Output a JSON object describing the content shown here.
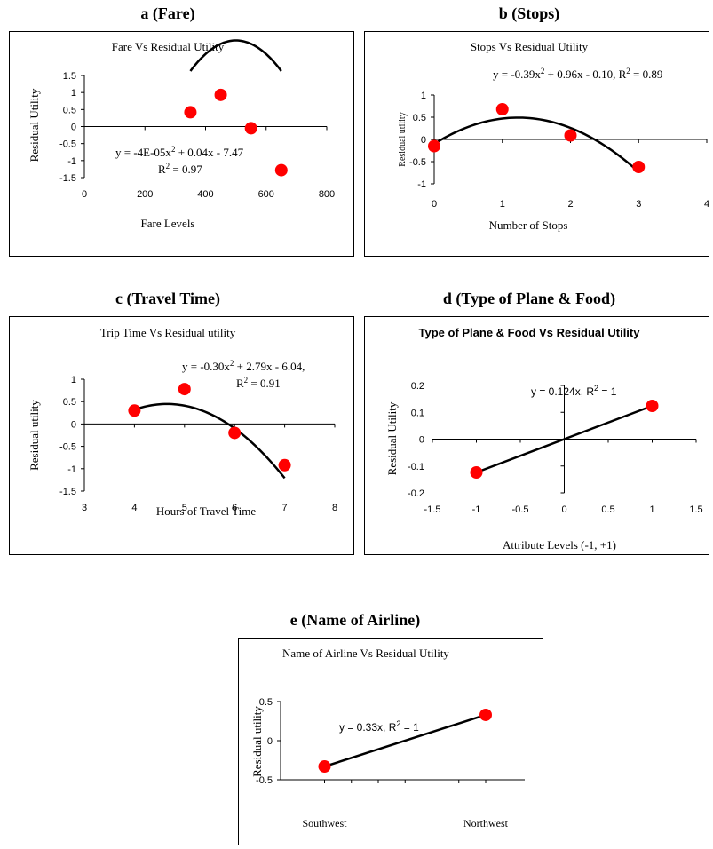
{
  "chart_data": [
    {
      "panel_label": "a (Fare)",
      "title": "Fare Vs Residual Utility",
      "type": "scatter",
      "xlabel": "Fare Levels",
      "ylabel": "Residual Utility",
      "xlim": [
        0,
        800
      ],
      "ylim": [
        -1.5,
        1.5
      ],
      "xticks": [
        0,
        200,
        400,
        600,
        800
      ],
      "yticks": [
        -1.5,
        -1,
        -0.5,
        0,
        0.5,
        1,
        1.5
      ],
      "points": [
        {
          "x": 350,
          "y": 0.42
        },
        {
          "x": 450,
          "y": 0.93
        },
        {
          "x": 550,
          "y": -0.05
        },
        {
          "x": 650,
          "y": -1.28
        }
      ],
      "trendline": {
        "kind": "poly2",
        "a": -4e-05,
        "b": 0.04,
        "c": -7.47,
        "eq": "y = -4E-05x",
        "eq_tail": " + 0.04x - 7.47",
        "r2": " = 0.97"
      },
      "marker_color": "#ff0000",
      "grid": false
    },
    {
      "panel_label": "b (Stops)",
      "title": "Stops Vs Residual Utility",
      "type": "scatter",
      "xlabel": "Number of Stops",
      "ylabel": "Residual utility",
      "xlim": [
        0,
        4
      ],
      "ylim": [
        -1,
        1
      ],
      "xticks": [
        0,
        1,
        2,
        3,
        4
      ],
      "yticks": [
        -1,
        -0.5,
        0,
        0.5,
        1
      ],
      "points": [
        {
          "x": 0,
          "y": -0.15
        },
        {
          "x": 1,
          "y": 0.68
        },
        {
          "x": 2,
          "y": 0.09
        },
        {
          "x": 3,
          "y": -0.62
        }
      ],
      "trendline": {
        "kind": "poly2",
        "a": -0.39,
        "b": 0.96,
        "c": -0.1,
        "eq": "y = -0.39x",
        "eq_tail": " + 0.96x - 0.10, R",
        "r2": " = 0.89"
      },
      "marker_color": "#ff0000",
      "grid": false
    },
    {
      "panel_label": "c (Travel Time)",
      "title": "Trip Time Vs Residual utility",
      "type": "scatter",
      "xlabel": "Hours of Travel Time",
      "ylabel": "Residual utility",
      "xlim": [
        3,
        8
      ],
      "ylim": [
        -1.5,
        1
      ],
      "xticks": [
        3,
        4,
        5,
        6,
        7,
        8
      ],
      "yticks": [
        -1.5,
        -1,
        -0.5,
        0,
        0.5,
        1
      ],
      "points": [
        {
          "x": 4,
          "y": 0.3
        },
        {
          "x": 5,
          "y": 0.78
        },
        {
          "x": 6,
          "y": -0.2
        },
        {
          "x": 7,
          "y": -0.92
        }
      ],
      "trendline": {
        "kind": "poly2",
        "a": -0.3,
        "b": 2.79,
        "c": -6.04,
        "eq": "y = -0.30x",
        "eq_tail": " + 2.79x - 6.04,",
        "r2": " = 0.91"
      },
      "marker_color": "#ff0000",
      "grid": false
    },
    {
      "panel_label": "d (Type of Plane & Food)",
      "title": "Type of Plane & Food Vs Residual Utility",
      "type": "scatter",
      "xlabel": "Attribute Levels (-1, +1)",
      "ylabel": "Residual Utility",
      "xlim": [
        -1.5,
        1.5
      ],
      "ylim": [
        -0.2,
        0.2
      ],
      "xticks": [
        -1.5,
        -1,
        -0.5,
        0,
        0.5,
        1,
        1.5
      ],
      "yticks": [
        -0.2,
        -0.1,
        0,
        0.1,
        0.2
      ],
      "points": [
        {
          "x": -1,
          "y": -0.124
        },
        {
          "x": 1,
          "y": 0.124
        }
      ],
      "trendline": {
        "kind": "line",
        "slope": 0.124,
        "eq": "y = 0.124x, R",
        "r2": " = 1"
      },
      "marker_color": "#ff0000",
      "grid": false
    },
    {
      "panel_label": "e (Name of Airline)",
      "title": "Name of Airline Vs Residual Utility",
      "type": "scatter",
      "xlabel": "",
      "ylabel": "Residual utility",
      "categories": [
        "Southwest",
        "Northwest"
      ],
      "ylim": [
        -0.5,
        0.5
      ],
      "yticks": [
        -0.5,
        0,
        0.5
      ],
      "points": [
        {
          "x": "Southwest",
          "y": -0.33
        },
        {
          "x": "Northwest",
          "y": 0.33
        }
      ],
      "trendline": {
        "kind": "line",
        "slope": 0.33,
        "eq": "y = 0.33x, R",
        "r2": " = 1"
      },
      "marker_color": "#ff0000",
      "grid": false
    }
  ]
}
